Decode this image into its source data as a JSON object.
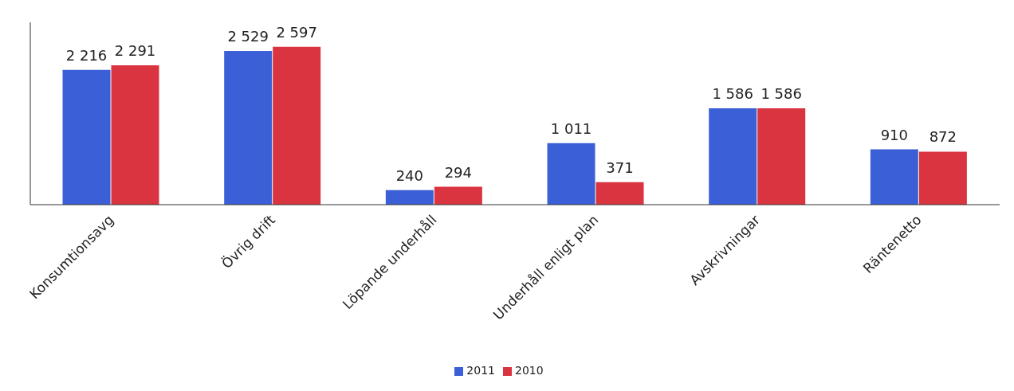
{
  "chart_data": {
    "type": "bar",
    "categories": [
      "Konsumtionsavg",
      "Övrig drift",
      "Löpande underhåll",
      "Underhåll enligt plan",
      "Avskrivningar",
      "Räntenetto"
    ],
    "series": [
      {
        "name": "2011",
        "color": "#3b5fd6",
        "values": [
          2216,
          2529,
          240,
          1011,
          1586,
          910
        ],
        "value_labels": [
          "2 216",
          "2 529",
          "240",
          "1 011",
          "1 586",
          "910"
        ]
      },
      {
        "name": "2010",
        "color": "#d9343f",
        "values": [
          2291,
          2597,
          294,
          371,
          1586,
          872
        ],
        "value_labels": [
          "2 291",
          "2 597",
          "294",
          "371",
          "1 586",
          "872"
        ]
      }
    ],
    "ylim": [
      0,
      3000
    ],
    "tick_labels": "x",
    "grid": false,
    "legend": "bottom"
  }
}
